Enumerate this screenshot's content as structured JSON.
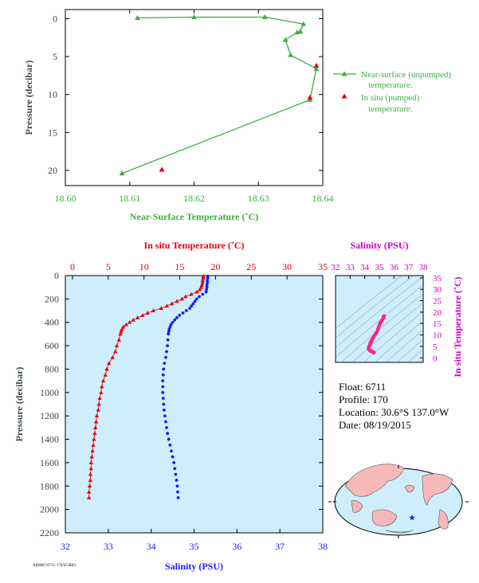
{
  "colors": {
    "green": "#3fae3f",
    "red": "#e3000f",
    "blue": "#1a1aff",
    "magenta": "#d000c0",
    "pink": "#ff2288",
    "panel_bg": "#cdeefa",
    "label_dark": "#3a4a3a",
    "land": "#f6b8b8"
  },
  "info": {
    "float": "Float:  6711",
    "profile": "Profile:  170",
    "location": "Location:  30.6°S  137.0°W",
    "date": "Date:  08/19/2015",
    "footer": "AR0067/6711-170/S5/BIO"
  },
  "chart_data": [
    {
      "type": "line",
      "id": "near-surface",
      "xlabel": "Near-Surface Temperature (˚C)",
      "ylabel": "Pressure (decibar)",
      "xlim": [
        18.6,
        18.64
      ],
      "ylim": [
        22,
        -1.2
      ],
      "xticks": [
        "18.60",
        "18.61",
        "18.62",
        "18.63",
        "18.64"
      ],
      "yticks": [
        0,
        5,
        10,
        15,
        20
      ],
      "legend_position": "right",
      "series": [
        {
          "name": "Near-surface (unpumped) temperature.",
          "style": "line-triangle",
          "color": "#3fae3f",
          "points": [
            [
              18.6112,
              -0.1
            ],
            [
              18.62,
              -0.2
            ],
            [
              18.631,
              -0.2
            ],
            [
              18.637,
              0.7
            ],
            [
              18.6365,
              1.7
            ],
            [
              18.636,
              1.8
            ],
            [
              18.6342,
              2.8
            ],
            [
              18.635,
              4.8
            ],
            [
              18.639,
              6.6
            ],
            [
              18.638,
              10.7
            ],
            [
              18.6088,
              20.4
            ]
          ]
        },
        {
          "name": "In situ (pumped) temperature.",
          "style": "triangle",
          "color": "#e3000f",
          "points": [
            [
              18.639,
              6.2
            ],
            [
              18.638,
              10.4
            ],
            [
              18.615,
              19.9
            ]
          ]
        }
      ]
    },
    {
      "type": "scatter",
      "id": "profile",
      "ylabel": "Pressure (decibar)",
      "top_xlabel": "In situ Temperature (˚C)",
      "bottom_xlabel": "Salinity (PSU)",
      "temp_ticks": [
        0,
        5,
        10,
        15,
        20,
        25,
        30,
        35
      ],
      "sal_ticks": [
        32,
        33,
        34,
        35,
        36,
        37,
        38
      ],
      "pressure_ticks": [
        0,
        200,
        400,
        600,
        800,
        1000,
        1200,
        1400,
        1600,
        1800,
        2000,
        2200
      ],
      "temp_lim": [
        -1,
        35
      ],
      "sal_lim": [
        32,
        38
      ],
      "pres_lim": [
        2200,
        0
      ],
      "temperature": [
        [
          18.3,
          5
        ],
        [
          18.3,
          20
        ],
        [
          18.2,
          40
        ],
        [
          18.2,
          60
        ],
        [
          18.1,
          80
        ],
        [
          18.0,
          100
        ],
        [
          17.8,
          120
        ],
        [
          17.4,
          140
        ],
        [
          16.6,
          160
        ],
        [
          15.8,
          180
        ],
        [
          15.3,
          200
        ],
        [
          14.6,
          220
        ],
        [
          13.9,
          240
        ],
        [
          13.2,
          260
        ],
        [
          12.4,
          280
        ],
        [
          11.3,
          300
        ],
        [
          10.5,
          320
        ],
        [
          9.8,
          340
        ],
        [
          9.1,
          360
        ],
        [
          8.5,
          380
        ],
        [
          8.0,
          400
        ],
        [
          7.5,
          420
        ],
        [
          7.1,
          440
        ],
        [
          6.9,
          460
        ],
        [
          6.8,
          480
        ],
        [
          6.7,
          500
        ],
        [
          6.5,
          550
        ],
        [
          6.2,
          600
        ],
        [
          6.0,
          650
        ],
        [
          5.6,
          700
        ],
        [
          5.1,
          750
        ],
        [
          4.8,
          800
        ],
        [
          4.6,
          850
        ],
        [
          4.3,
          900
        ],
        [
          4.1,
          950
        ],
        [
          4.0,
          1000
        ],
        [
          3.8,
          1050
        ],
        [
          3.7,
          1100
        ],
        [
          3.6,
          1150
        ],
        [
          3.4,
          1200
        ],
        [
          3.3,
          1250
        ],
        [
          3.2,
          1300
        ],
        [
          3.1,
          1350
        ],
        [
          3.0,
          1400
        ],
        [
          2.9,
          1450
        ],
        [
          2.8,
          1500
        ],
        [
          2.7,
          1550
        ],
        [
          2.6,
          1600
        ],
        [
          2.6,
          1650
        ],
        [
          2.5,
          1700
        ],
        [
          2.5,
          1750
        ],
        [
          2.4,
          1800
        ],
        [
          2.3,
          1850
        ],
        [
          2.3,
          1900
        ]
      ],
      "salinity": [
        [
          35.32,
          5
        ],
        [
          35.32,
          20
        ],
        [
          35.31,
          40
        ],
        [
          35.31,
          60
        ],
        [
          35.3,
          80
        ],
        [
          35.3,
          100
        ],
        [
          35.29,
          120
        ],
        [
          35.28,
          140
        ],
        [
          35.2,
          160
        ],
        [
          35.12,
          180
        ],
        [
          35.06,
          200
        ],
        [
          35.02,
          220
        ],
        [
          34.98,
          240
        ],
        [
          34.94,
          260
        ],
        [
          34.9,
          280
        ],
        [
          34.82,
          300
        ],
        [
          34.74,
          320
        ],
        [
          34.66,
          340
        ],
        [
          34.6,
          360
        ],
        [
          34.55,
          380
        ],
        [
          34.5,
          400
        ],
        [
          34.46,
          420
        ],
        [
          34.44,
          440
        ],
        [
          34.42,
          460
        ],
        [
          34.41,
          480
        ],
        [
          34.4,
          500
        ],
        [
          34.39,
          550
        ],
        [
          34.38,
          600
        ],
        [
          34.36,
          650
        ],
        [
          34.34,
          700
        ],
        [
          34.31,
          750
        ],
        [
          34.29,
          800
        ],
        [
          34.28,
          850
        ],
        [
          34.27,
          900
        ],
        [
          34.27,
          950
        ],
        [
          34.27,
          1000
        ],
        [
          34.28,
          1050
        ],
        [
          34.29,
          1100
        ],
        [
          34.3,
          1150
        ],
        [
          34.32,
          1200
        ],
        [
          34.34,
          1250
        ],
        [
          34.36,
          1300
        ],
        [
          34.38,
          1350
        ],
        [
          34.41,
          1400
        ],
        [
          34.44,
          1450
        ],
        [
          34.47,
          1500
        ],
        [
          34.5,
          1550
        ],
        [
          34.53,
          1600
        ],
        [
          34.55,
          1650
        ],
        [
          34.57,
          1700
        ],
        [
          34.59,
          1750
        ],
        [
          34.61,
          1800
        ],
        [
          34.62,
          1850
        ],
        [
          34.63,
          1900
        ]
      ]
    },
    {
      "type": "scatter",
      "id": "ts-diagram",
      "top_xlabel": "Salinity (PSU)",
      "right_ylabel": "In situ Temperature (˚C)",
      "sal_ticks": [
        32,
        33,
        34,
        35,
        36,
        37,
        38
      ],
      "temp_ticks": [
        0,
        5,
        10,
        15,
        20,
        25,
        30,
        35
      ],
      "sal_lim": [
        32,
        38
      ],
      "temp_lim": [
        -2,
        36
      ],
      "source": "profile"
    }
  ]
}
